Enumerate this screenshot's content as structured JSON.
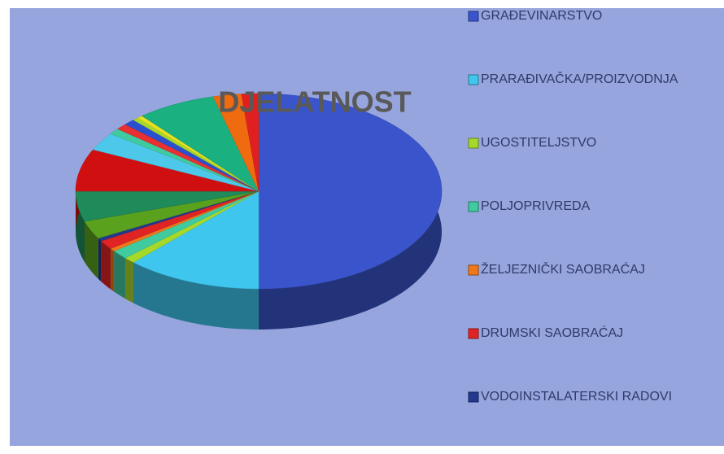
{
  "chart_data": {
    "type": "pie",
    "title": "DJELATNOST",
    "categories": [
      "GRAĐEVINARSTVO",
      "PRARAĐIVAČKA/PROIZVODNJA",
      "UGOSTITELJSTVO",
      "POLJOPRIVREDA",
      "ŽELJEZNIČKI SAOBRAĆAJ",
      "DRUMSKI SAOBRAĆAJ",
      "VODOINSTALATERSKI RADOVI",
      null,
      null,
      null,
      null,
      null,
      null,
      null,
      null,
      null,
      null,
      null,
      null
    ],
    "values": [
      50,
      12,
      1,
      1.5,
      0.5,
      1.5,
      0.5,
      3,
      5,
      7,
      3,
      1,
      1,
      1,
      0.5,
      0.5,
      7,
      2.5,
      1.5
    ],
    "colors": [
      "#3a55cc",
      "#3ec6ee",
      "#a6d82a",
      "#3fcaa0",
      "#f07818",
      "#e02424",
      "#22398e",
      "#5aa21e",
      "#1f8a5a",
      "#d01010",
      "#4ec8ea",
      "#3fcaa0",
      "#e83030",
      "#2a50d0",
      "#a6d82a",
      "#e8e020",
      "#1ab080",
      "#f06a10",
      "#e02020"
    ]
  }
}
